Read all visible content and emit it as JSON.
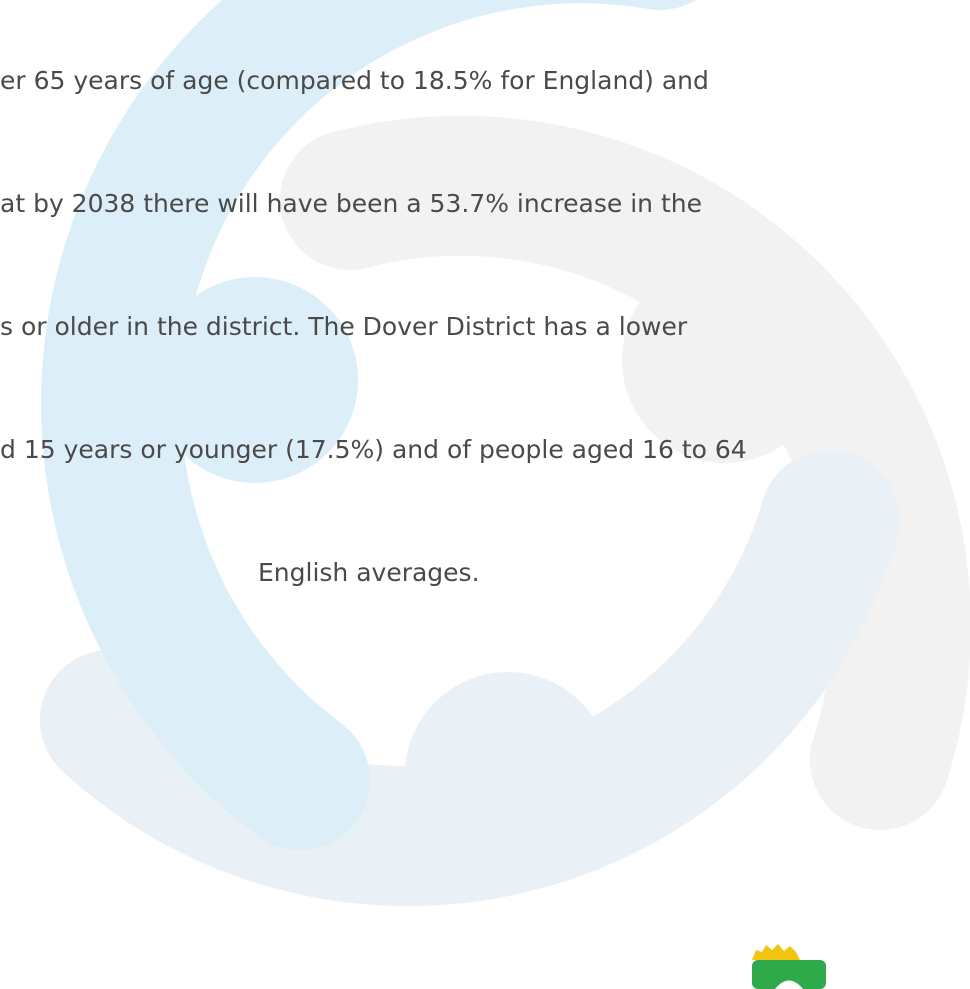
{
  "document": {
    "lines": [
      "er 65 years of age (compared to 18.5% for England) and",
      "at by 2038 there will have been a 53.7% increase in the",
      "s or older in the district. The Dover District has a lower",
      "d 15 years or younger (17.5%) and of people aged 16 to 64",
      "English averages."
    ]
  }
}
